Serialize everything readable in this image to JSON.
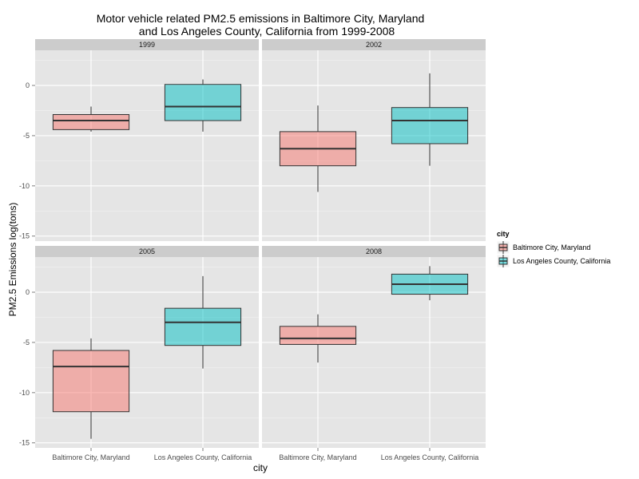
{
  "chart_data": {
    "type": "boxplot",
    "title": [
      "Motor vehicle related PM2.5 emissions in Baltimore City, Maryland",
      "and Los Angeles County, California from 1999-2008"
    ],
    "xlabel": "city",
    "ylabel": "PM2.5 Emissions log(tons)",
    "categories": [
      "Baltimore City, Maryland",
      "Los Angeles County, California"
    ],
    "ylim": [
      -15.5,
      3.5
    ],
    "yticks": [
      0,
      -5,
      -10,
      -15
    ],
    "ytick_labels": [
      "0",
      "-5",
      "-10",
      "-15"
    ],
    "grid": true,
    "legend_position": "right",
    "legend": {
      "title": "city",
      "entries": [
        {
          "label": "Baltimore City, Maryland",
          "color": "#f8766d"
        },
        {
          "label": "Los Angeles County, California",
          "color": "#00bfc4"
        }
      ]
    },
    "colors": {
      "Baltimore City, Maryland": "#f8766d",
      "Los Angeles County, California": "#00bfc4"
    },
    "panels": [
      {
        "label": "1999",
        "boxes": [
          {
            "category": "Baltimore City, Maryland",
            "min": -4.6,
            "q1": -4.4,
            "median": -3.5,
            "q3": -2.9,
            "max": -2.1
          },
          {
            "category": "Los Angeles County, California",
            "min": -4.6,
            "q1": -3.5,
            "median": -2.1,
            "q3": 0.1,
            "max": 0.6
          }
        ]
      },
      {
        "label": "2002",
        "boxes": [
          {
            "category": "Baltimore City, Maryland",
            "min": -10.6,
            "q1": -8.0,
            "median": -6.3,
            "q3": -4.6,
            "max": -2.0
          },
          {
            "category": "Los Angeles County, California",
            "min": -8.0,
            "q1": -5.8,
            "median": -3.5,
            "q3": -2.2,
            "max": 1.2
          }
        ]
      },
      {
        "label": "2005",
        "boxes": [
          {
            "category": "Baltimore City, Maryland",
            "min": -14.6,
            "q1": -11.9,
            "median": -7.4,
            "q3": -5.8,
            "max": -4.6
          },
          {
            "category": "Los Angeles County, California",
            "min": -7.6,
            "q1": -5.3,
            "median": -3.0,
            "q3": -1.6,
            "max": 1.6
          }
        ]
      },
      {
        "label": "2008",
        "boxes": [
          {
            "category": "Baltimore City, Maryland",
            "min": -7.0,
            "q1": -5.2,
            "median": -4.6,
            "q3": -3.4,
            "max": -2.2
          },
          {
            "category": "Los Angeles County, California",
            "min": -0.8,
            "q1": -0.2,
            "median": 0.8,
            "q3": 1.8,
            "max": 2.6
          }
        ]
      }
    ]
  }
}
